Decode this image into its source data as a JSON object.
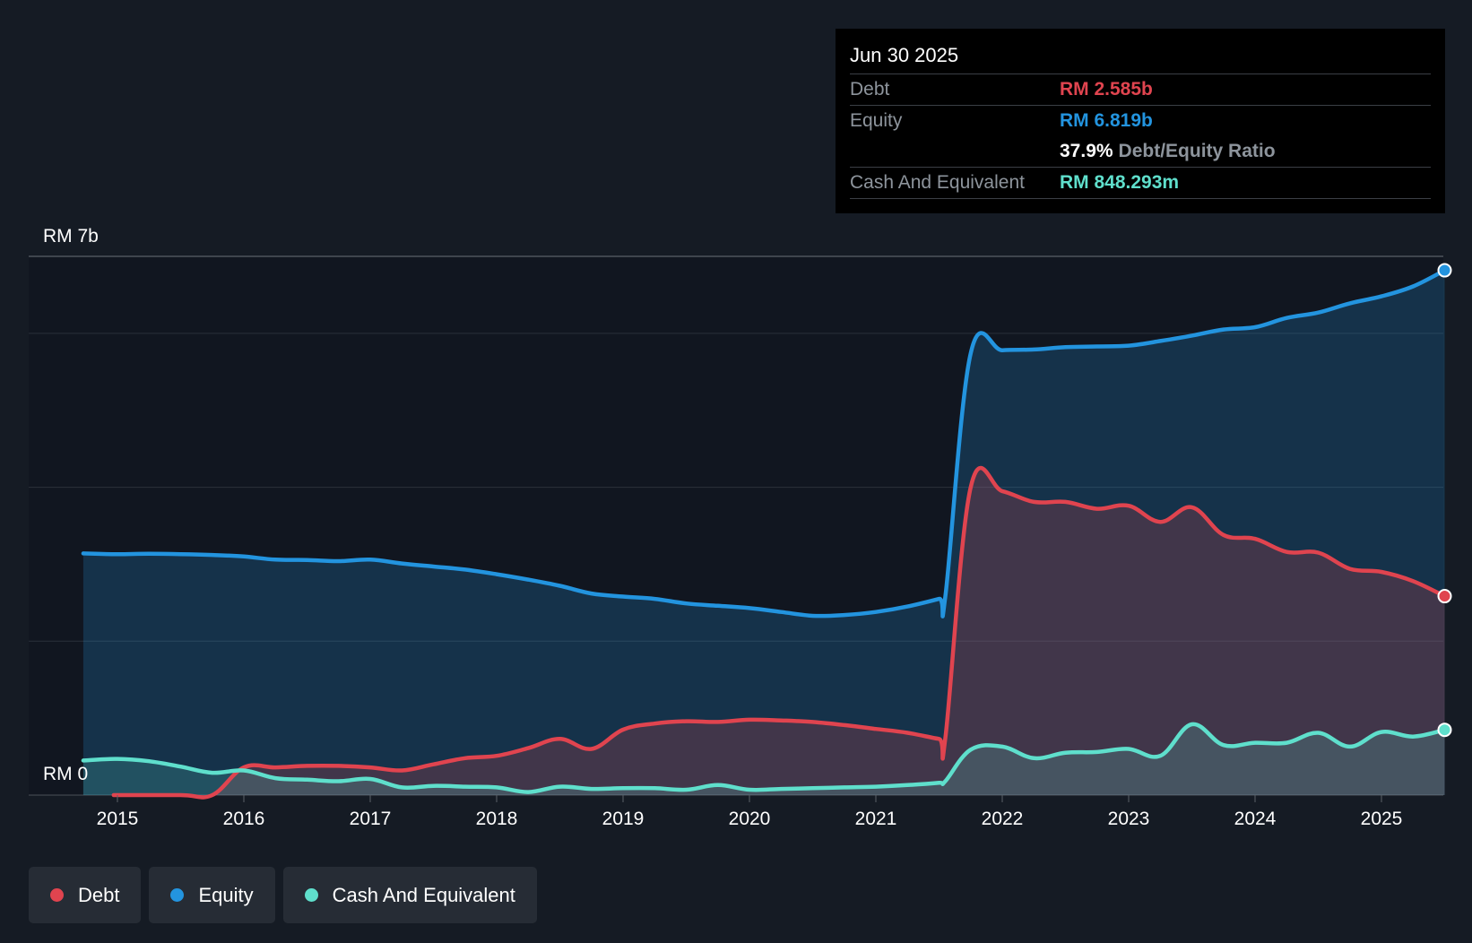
{
  "tooltip": {
    "date": "Jun 30 2025",
    "debt_label": "Debt",
    "debt_value": "RM 2.585b",
    "equity_label": "Equity",
    "equity_value": "RM 6.819b",
    "ratio_value": "37.9%",
    "ratio_label": "Debt/Equity Ratio",
    "cash_label": "Cash And Equivalent",
    "cash_value": "RM 848.293m"
  },
  "legend": [
    {
      "label": "Debt",
      "color": "#e0444f"
    },
    {
      "label": "Equity",
      "color": "#2394df"
    },
    {
      "label": "Cash And Equivalent",
      "color": "#5fdfcc"
    }
  ],
  "colors": {
    "debt": "#e0444f",
    "equity": "#2394df",
    "cash": "#5fdfcc",
    "background": "#151b24",
    "plot_background": "#111620"
  },
  "chart_data": {
    "type": "area",
    "title": "",
    "xlabel": "",
    "ylabel": "",
    "y_axis_labels": {
      "top": "RM 7b",
      "bottom": "RM 0"
    },
    "ylim": [
      0,
      7
    ],
    "xlim": [
      2014.73,
      2025.5
    ],
    "grid": true,
    "gridlines": [
      0,
      2,
      4,
      6,
      7
    ],
    "x_ticks": [
      2015,
      2016,
      2017,
      2018,
      2019,
      2020,
      2021,
      2022,
      2023,
      2024,
      2025
    ],
    "x_tick_labels": [
      "2015",
      "2016",
      "2017",
      "2018",
      "2019",
      "2020",
      "2021",
      "2022",
      "2023",
      "2024",
      "2025"
    ],
    "legend_position": "bottom-left",
    "series": [
      {
        "name": "Equity",
        "key": "equity",
        "unit": "RM b",
        "points": [
          [
            2014.73,
            3.14
          ],
          [
            2015.0,
            3.13
          ],
          [
            2015.25,
            3.135
          ],
          [
            2015.5,
            3.13
          ],
          [
            2015.75,
            3.12
          ],
          [
            2016.0,
            3.1
          ],
          [
            2016.25,
            3.06
          ],
          [
            2016.5,
            3.055
          ],
          [
            2016.75,
            3.04
          ],
          [
            2017.0,
            3.06
          ],
          [
            2017.25,
            3.01
          ],
          [
            2017.5,
            2.97
          ],
          [
            2017.75,
            2.93
          ],
          [
            2018.0,
            2.87
          ],
          [
            2018.25,
            2.8
          ],
          [
            2018.5,
            2.72
          ],
          [
            2018.75,
            2.62
          ],
          [
            2019.0,
            2.58
          ],
          [
            2019.25,
            2.55
          ],
          [
            2019.5,
            2.49
          ],
          [
            2019.75,
            2.46
          ],
          [
            2020.0,
            2.43
          ],
          [
            2020.25,
            2.38
          ],
          [
            2020.5,
            2.33
          ],
          [
            2020.75,
            2.34
          ],
          [
            2021.0,
            2.38
          ],
          [
            2021.25,
            2.45
          ],
          [
            2021.5,
            2.55
          ],
          [
            2021.55,
            2.58
          ],
          [
            2021.75,
            5.74
          ],
          [
            2022.0,
            5.78
          ],
          [
            2022.25,
            5.79
          ],
          [
            2022.5,
            5.82
          ],
          [
            2022.75,
            5.83
          ],
          [
            2023.0,
            5.84
          ],
          [
            2023.25,
            5.9
          ],
          [
            2023.5,
            5.97
          ],
          [
            2023.75,
            6.05
          ],
          [
            2024.0,
            6.08
          ],
          [
            2024.25,
            6.2
          ],
          [
            2024.5,
            6.27
          ],
          [
            2024.75,
            6.39
          ],
          [
            2025.0,
            6.48
          ],
          [
            2025.25,
            6.61
          ],
          [
            2025.5,
            6.819
          ]
        ]
      },
      {
        "name": "Debt",
        "key": "debt",
        "unit": "RM b",
        "points": [
          [
            2014.97,
            0.0
          ],
          [
            2015.5,
            0.0
          ],
          [
            2015.75,
            0.0
          ],
          [
            2016.0,
            0.36
          ],
          [
            2016.25,
            0.36
          ],
          [
            2016.5,
            0.38
          ],
          [
            2016.75,
            0.38
          ],
          [
            2017.0,
            0.36
          ],
          [
            2017.25,
            0.32
          ],
          [
            2017.5,
            0.4
          ],
          [
            2017.75,
            0.48
          ],
          [
            2018.0,
            0.51
          ],
          [
            2018.25,
            0.61
          ],
          [
            2018.5,
            0.73
          ],
          [
            2018.75,
            0.6
          ],
          [
            2019.0,
            0.85
          ],
          [
            2019.25,
            0.93
          ],
          [
            2019.5,
            0.96
          ],
          [
            2019.75,
            0.95
          ],
          [
            2020.0,
            0.98
          ],
          [
            2020.25,
            0.97
          ],
          [
            2020.5,
            0.95
          ],
          [
            2020.75,
            0.91
          ],
          [
            2021.0,
            0.86
          ],
          [
            2021.25,
            0.81
          ],
          [
            2021.5,
            0.73
          ],
          [
            2021.55,
            0.74
          ],
          [
            2021.75,
            4.0
          ],
          [
            2022.0,
            3.95
          ],
          [
            2022.25,
            3.81
          ],
          [
            2022.5,
            3.81
          ],
          [
            2022.75,
            3.72
          ],
          [
            2023.0,
            3.76
          ],
          [
            2023.25,
            3.55
          ],
          [
            2023.5,
            3.74
          ],
          [
            2023.75,
            3.38
          ],
          [
            2024.0,
            3.33
          ],
          [
            2024.25,
            3.16
          ],
          [
            2024.5,
            3.15
          ],
          [
            2024.75,
            2.94
          ],
          [
            2025.0,
            2.9
          ],
          [
            2025.25,
            2.78
          ],
          [
            2025.5,
            2.585
          ]
        ]
      },
      {
        "name": "Cash And Equivalent",
        "key": "cash",
        "unit": "RM b",
        "points": [
          [
            2014.73,
            0.45
          ],
          [
            2015.0,
            0.47
          ],
          [
            2015.25,
            0.44
          ],
          [
            2015.5,
            0.37
          ],
          [
            2015.75,
            0.29
          ],
          [
            2016.0,
            0.32
          ],
          [
            2016.25,
            0.22
          ],
          [
            2016.5,
            0.2
          ],
          [
            2016.75,
            0.18
          ],
          [
            2017.0,
            0.21
          ],
          [
            2017.25,
            0.1
          ],
          [
            2017.5,
            0.12
          ],
          [
            2017.75,
            0.11
          ],
          [
            2018.0,
            0.1
          ],
          [
            2018.25,
            0.04
          ],
          [
            2018.5,
            0.11
          ],
          [
            2018.75,
            0.08
          ],
          [
            2019.0,
            0.09
          ],
          [
            2019.25,
            0.09
          ],
          [
            2019.5,
            0.07
          ],
          [
            2019.75,
            0.13
          ],
          [
            2020.0,
            0.07
          ],
          [
            2020.25,
            0.08
          ],
          [
            2020.5,
            0.09
          ],
          [
            2020.75,
            0.1
          ],
          [
            2021.0,
            0.11
          ],
          [
            2021.25,
            0.13
          ],
          [
            2021.5,
            0.16
          ],
          [
            2021.55,
            0.18
          ],
          [
            2021.75,
            0.59
          ],
          [
            2022.0,
            0.63
          ],
          [
            2022.25,
            0.48
          ],
          [
            2022.5,
            0.55
          ],
          [
            2022.75,
            0.56
          ],
          [
            2023.0,
            0.6
          ],
          [
            2023.25,
            0.51
          ],
          [
            2023.5,
            0.92
          ],
          [
            2023.75,
            0.65
          ],
          [
            2024.0,
            0.68
          ],
          [
            2024.25,
            0.68
          ],
          [
            2024.5,
            0.81
          ],
          [
            2024.75,
            0.63
          ],
          [
            2025.0,
            0.82
          ],
          [
            2025.25,
            0.76
          ],
          [
            2025.5,
            0.848
          ]
        ]
      }
    ]
  }
}
